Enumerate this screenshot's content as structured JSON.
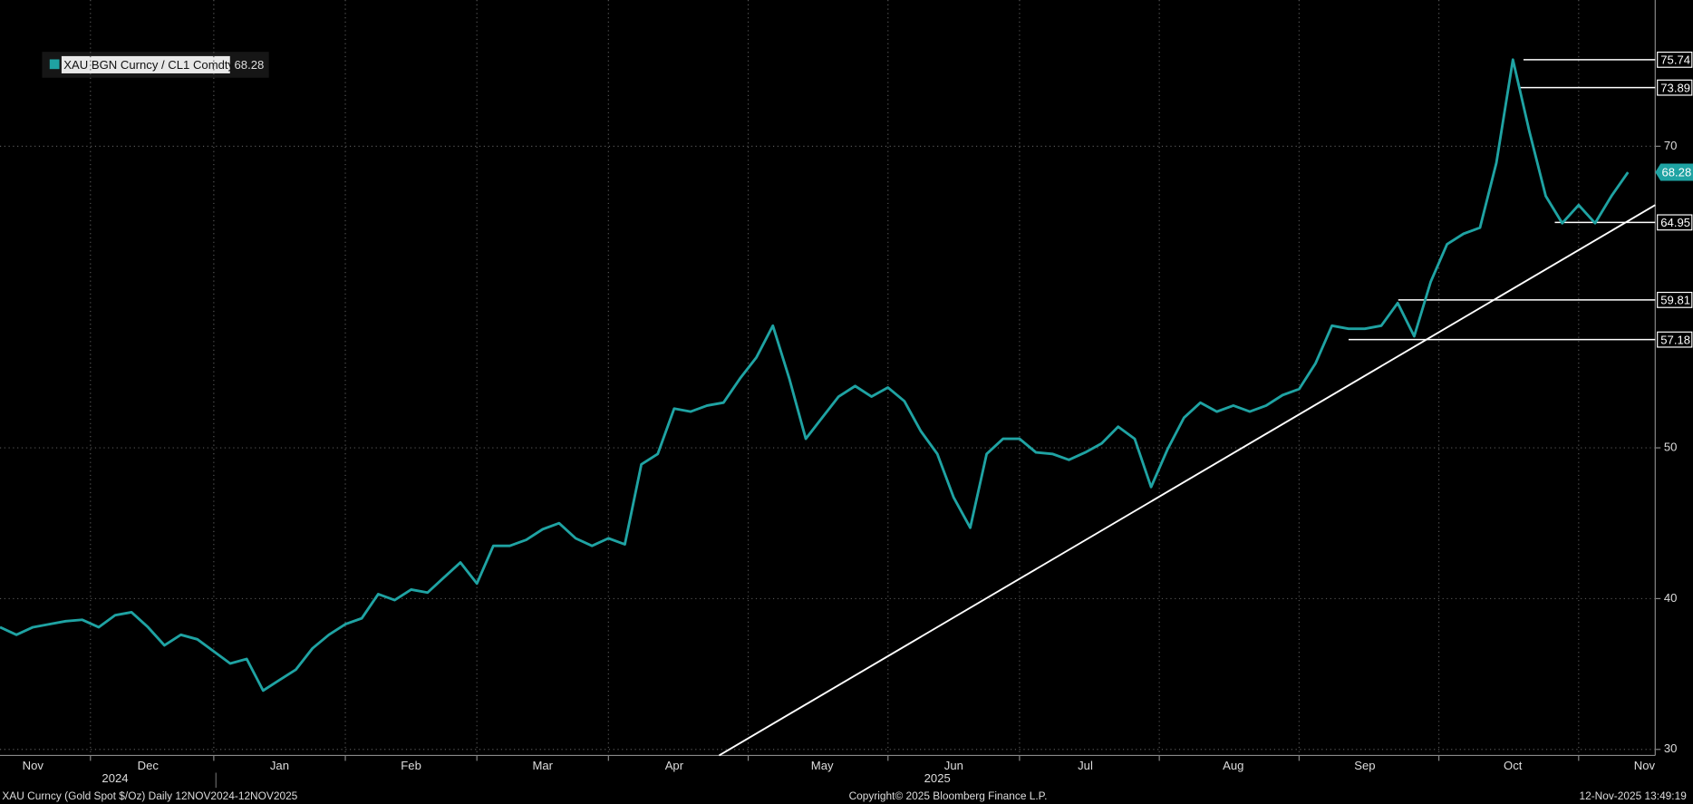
{
  "chart_data": {
    "type": "line",
    "categories": [
      null,
      null,
      "Nov",
      null,
      null,
      null,
      null,
      null,
      null,
      "Dec",
      null,
      null,
      null,
      null,
      null,
      null,
      null,
      "Jan",
      null,
      null,
      null,
      null,
      null,
      null,
      null,
      "Feb",
      null,
      null,
      null,
      null,
      null,
      null,
      null,
      "Mar",
      null,
      null,
      null,
      null,
      null,
      null,
      null,
      "Apr",
      null,
      null,
      null,
      null,
      null,
      null,
      null,
      null,
      "May",
      null,
      null,
      null,
      null,
      null,
      null,
      null,
      "Jun",
      null,
      null,
      null,
      null,
      null,
      null,
      null,
      "Jul",
      null,
      null,
      null,
      null,
      null,
      null,
      null,
      null,
      "Aug",
      null,
      null,
      null,
      null,
      null,
      null,
      null,
      "Sep",
      null,
      null,
      null,
      null,
      null,
      null,
      null,
      null,
      "Oct",
      null,
      null,
      null,
      null,
      null,
      null,
      null,
      "Nov"
    ],
    "year_categories": [
      null,
      null,
      null,
      null,
      null,
      null,
      null,
      "2024",
      null,
      null,
      null,
      null,
      null,
      null,
      null,
      null,
      null,
      null,
      null,
      null,
      null,
      null,
      null,
      null,
      null,
      null,
      null,
      null,
      null,
      null,
      null,
      null,
      null,
      null,
      null,
      null,
      null,
      null,
      null,
      null,
      null,
      null,
      null,
      null,
      null,
      null,
      null,
      null,
      null,
      null,
      null,
      null,
      null,
      null,
      null,
      null,
      null,
      "2025",
      null,
      null,
      null,
      null,
      null,
      null,
      null,
      null,
      null,
      null,
      null,
      null,
      null,
      null,
      null,
      null,
      null,
      null,
      null,
      null,
      null,
      null,
      null,
      null,
      null,
      null,
      null,
      null,
      null,
      null,
      null,
      null,
      null,
      null,
      null,
      null,
      null,
      null,
      null,
      null,
      null,
      null,
      null
    ],
    "series": [
      {
        "name": "XAU BGN Curncy / CL1 Comdty",
        "color": "#1fa3a3",
        "values": [
          38.1,
          37.6,
          38.1,
          38.3,
          38.5,
          38.6,
          38.1,
          38.9,
          39.1,
          38.1,
          36.9,
          37.6,
          37.3,
          36.5,
          35.7,
          36.0,
          33.9,
          34.6,
          35.3,
          36.7,
          37.6,
          38.3,
          38.7,
          40.3,
          39.9,
          40.6,
          40.4,
          41.4,
          42.4,
          41.0,
          43.5,
          43.5,
          43.9,
          44.6,
          45.0,
          44.0,
          43.5,
          44.0,
          43.6,
          48.9,
          49.6,
          52.6,
          52.4,
          52.8,
          53.0,
          54.6,
          56.0,
          58.1,
          54.6,
          50.6,
          52.0,
          53.4,
          54.1,
          53.4,
          54.0,
          53.1,
          51.1,
          49.6,
          46.7,
          44.7,
          49.6,
          50.6,
          50.6,
          49.7,
          49.6,
          49.2,
          49.7,
          50.3,
          51.4,
          50.6,
          47.4,
          49.9,
          52.0,
          53.0,
          52.4,
          52.8,
          52.4,
          52.8,
          53.5,
          53.9,
          55.6,
          58.1,
          57.9,
          57.9,
          58.1,
          59.6,
          57.4,
          61.0,
          63.5,
          64.2,
          64.6,
          68.9,
          75.74,
          71.0,
          66.7,
          64.9,
          66.1,
          64.9,
          66.7,
          68.28,
          null
        ]
      }
    ],
    "levels": [
      75.74,
      73.89,
      64.95,
      59.81,
      57.18
    ],
    "trendline": [
      29.6,
      66.1
    ],
    "ylim": [
      29.6,
      79.7
    ],
    "yticks": [
      30,
      40,
      50,
      70
    ],
    "grid": true,
    "footer": {
      "left": "XAU Curncy (Gold Spot  $/Oz) Daily 12NOV2024-12NOV2025",
      "center": "Copyright© 2025 Bloomberg Finance L.P.",
      "right": "12-Nov-2025 13:49:19"
    }
  }
}
